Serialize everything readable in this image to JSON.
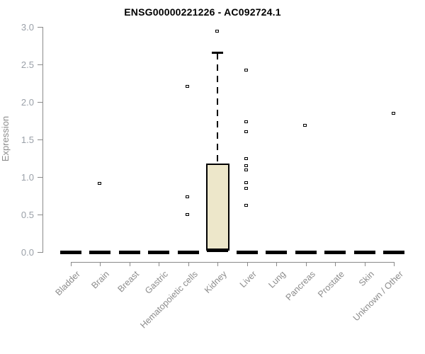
{
  "chart_data": {
    "type": "box",
    "title": "ENSG00000221226 - AC092724.1",
    "ylabel": "Expression",
    "xlabel": "",
    "ylim": [
      0.0,
      3.0
    ],
    "yticks": [
      "0.0",
      "0.5",
      "1.0",
      "1.5",
      "2.0",
      "2.5",
      "3.0"
    ],
    "grid": "off",
    "legend": "none",
    "categories": [
      "Bladder",
      "Brain",
      "Breast",
      "Gastric",
      "Hematopoietic cells",
      "Kidney",
      "Liver",
      "Lung",
      "Pancreas",
      "Prostate",
      "Skin",
      "Unknown / Other"
    ],
    "boxes": [
      {
        "category": "Bladder",
        "median": 0.0,
        "q1": 0.0,
        "q3": 0.0,
        "whisker_low": 0.0,
        "whisker_high": 0.0
      },
      {
        "category": "Brain",
        "median": 0.0,
        "q1": 0.0,
        "q3": 0.0,
        "whisker_low": 0.0,
        "whisker_high": 0.0
      },
      {
        "category": "Breast",
        "median": 0.0,
        "q1": 0.0,
        "q3": 0.0,
        "whisker_low": 0.0,
        "whisker_high": 0.0
      },
      {
        "category": "Gastric",
        "median": 0.0,
        "q1": 0.0,
        "q3": 0.0,
        "whisker_low": 0.0,
        "whisker_high": 0.0
      },
      {
        "category": "Hematopoietic cells",
        "median": 0.0,
        "q1": 0.0,
        "q3": 0.0,
        "whisker_low": 0.0,
        "whisker_high": 0.0
      },
      {
        "category": "Kidney",
        "median": 0.02,
        "q1": 0.02,
        "q3": 1.18,
        "whisker_low": 0.02,
        "whisker_high": 2.65
      },
      {
        "category": "Liver",
        "median": 0.0,
        "q1": 0.0,
        "q3": 0.0,
        "whisker_low": 0.0,
        "whisker_high": 0.0
      },
      {
        "category": "Lung",
        "median": 0.0,
        "q1": 0.0,
        "q3": 0.0,
        "whisker_low": 0.0,
        "whisker_high": 0.0
      },
      {
        "category": "Pancreas",
        "median": 0.0,
        "q1": 0.0,
        "q3": 0.0,
        "whisker_low": 0.0,
        "whisker_high": 0.0
      },
      {
        "category": "Prostate",
        "median": 0.0,
        "q1": 0.0,
        "q3": 0.0,
        "whisker_low": 0.0,
        "whisker_high": 0.0
      },
      {
        "category": "Skin",
        "median": 0.0,
        "q1": 0.0,
        "q3": 0.0,
        "whisker_low": 0.0,
        "whisker_high": 0.0
      },
      {
        "category": "Unknown / Other",
        "median": 0.0,
        "q1": 0.0,
        "q3": 0.0,
        "whisker_low": 0.0,
        "whisker_high": 0.0
      }
    ],
    "points": [
      {
        "category": "Brain",
        "value": 0.91
      },
      {
        "category": "Hematopoietic cells",
        "value": 2.2
      },
      {
        "category": "Hematopoietic cells",
        "value": 0.73
      },
      {
        "category": "Hematopoietic cells",
        "value": 0.5
      },
      {
        "category": "Kidney",
        "value": 2.94
      },
      {
        "category": "Liver",
        "value": 2.42
      },
      {
        "category": "Liver",
        "value": 1.73
      },
      {
        "category": "Liver",
        "value": 1.6
      },
      {
        "category": "Liver",
        "value": 1.24
      },
      {
        "category": "Liver",
        "value": 1.15
      },
      {
        "category": "Liver",
        "value": 1.09
      },
      {
        "category": "Liver",
        "value": 0.92
      },
      {
        "category": "Liver",
        "value": 0.84
      },
      {
        "category": "Liver",
        "value": 0.62
      },
      {
        "category": "Pancreas",
        "value": 1.68
      },
      {
        "category": "Unknown / Other",
        "value": 1.84
      }
    ],
    "colors": {
      "box_fill": "#EDE7CA",
      "box_border": "#000000",
      "median": "#000000",
      "point": "#000000",
      "axis": "#8a8a8a",
      "y_tick_text": "#9aa0a8",
      "x_label_text": "#8c8c8c",
      "title_text": "#000000",
      "background": "#ffffff"
    }
  }
}
